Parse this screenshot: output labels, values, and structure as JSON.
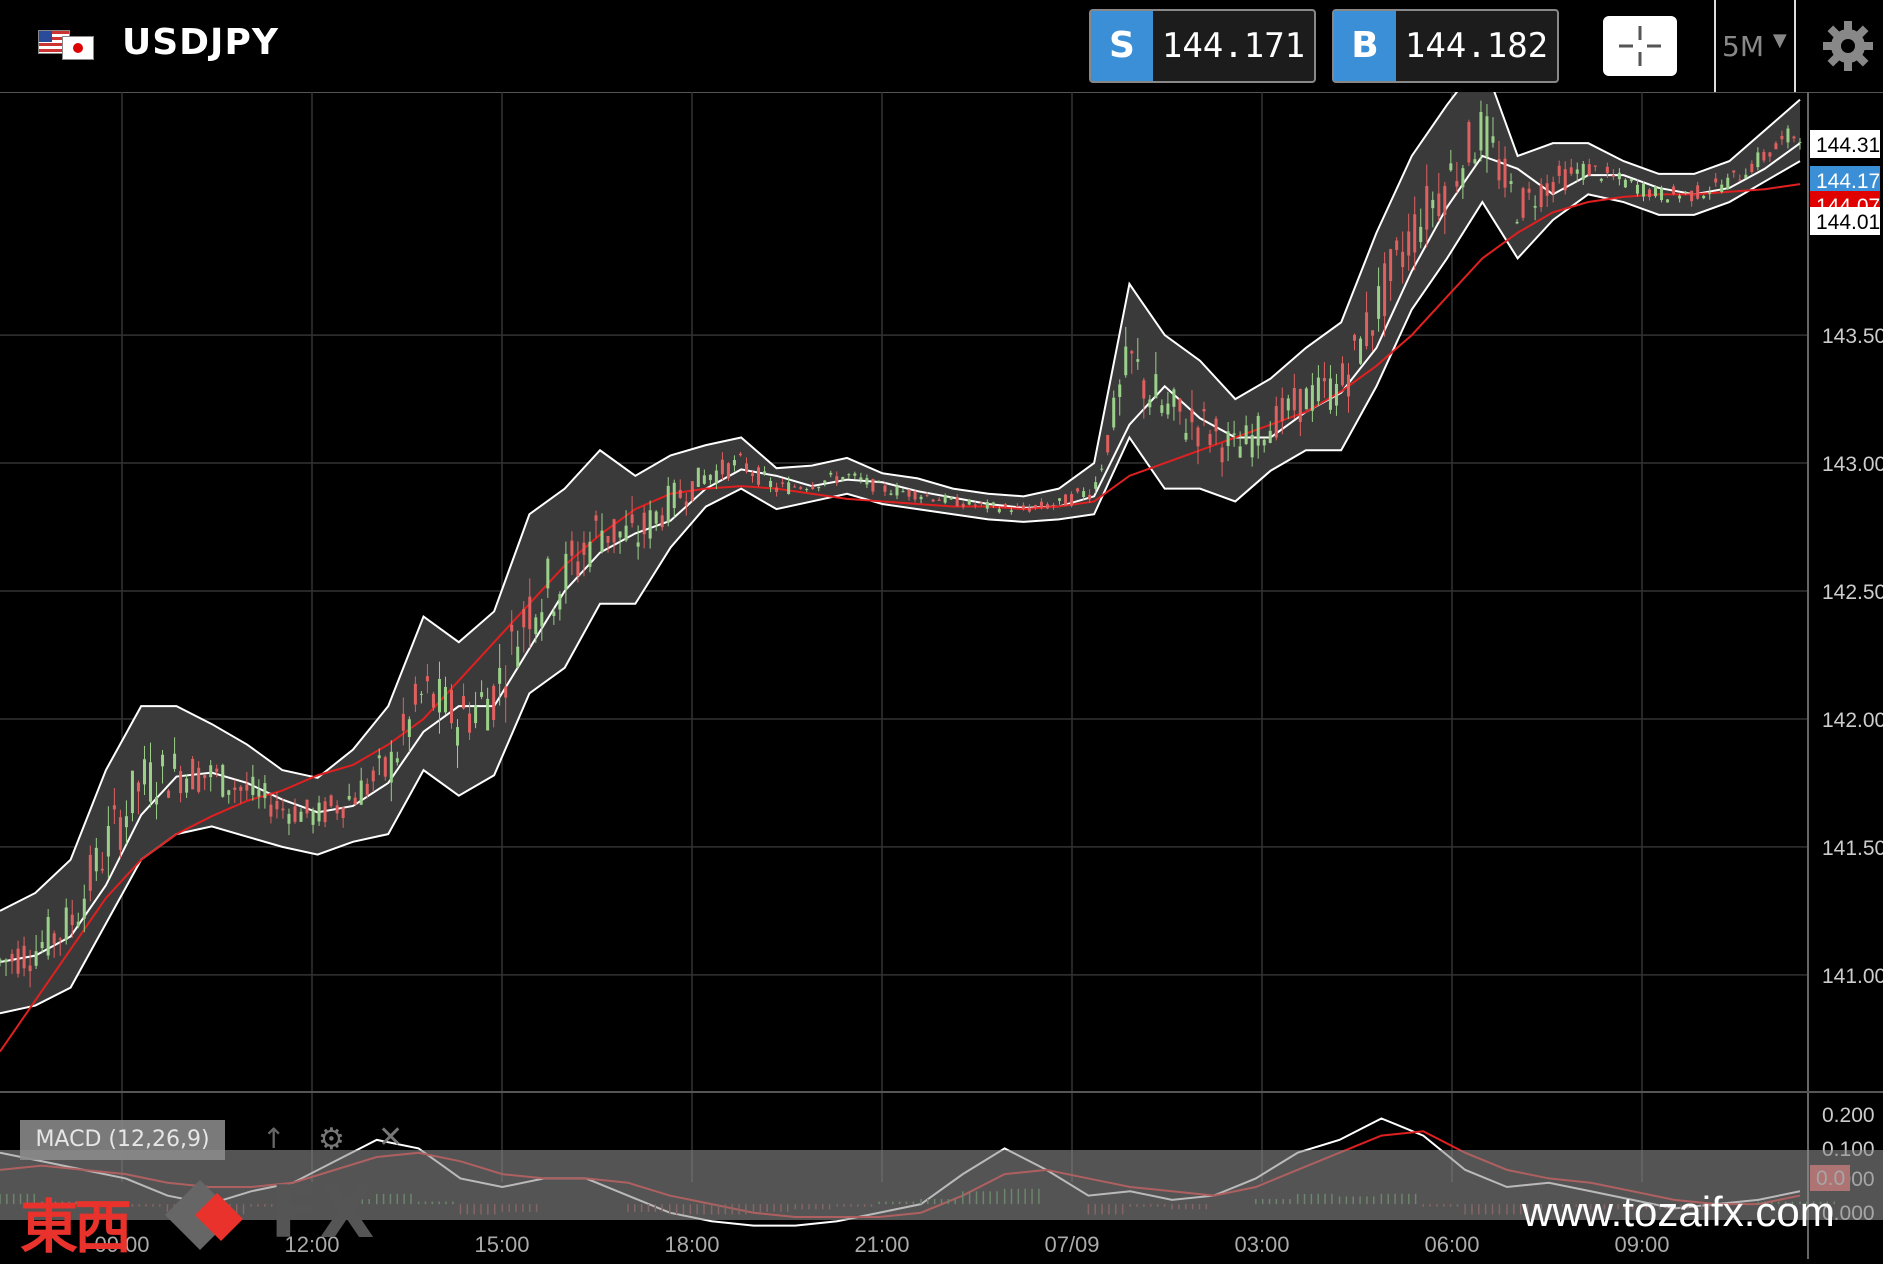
{
  "header": {
    "pair": "USDJPY",
    "sell": {
      "tag": "S",
      "price": "144.171"
    },
    "buy": {
      "tag": "B",
      "price": "144.182"
    },
    "timeframe": "5M",
    "crosshair_icon": "crosshair-icon",
    "settings_icon": "gear-icon",
    "flags": [
      "us-flag-icon",
      "jp-flag-icon"
    ]
  },
  "chart_data": {
    "type": "candlestick",
    "indicators": [
      "Bollinger Bands",
      "Moving Average",
      "MACD (12,26,9)"
    ],
    "y_ticks": [
      "141.00",
      "141.50",
      "142.00",
      "142.50",
      "143.00",
      "143.50"
    ],
    "price_tags": [
      {
        "label": "144.31",
        "color": "#ffffff",
        "text_color": "#000000"
      },
      {
        "label": "144.17",
        "color": "#3a8fd6",
        "text_color": "#ffffff"
      },
      {
        "label": "144.07",
        "color": "#e00000",
        "text_color": "#ffffff"
      },
      {
        "label": "144.01",
        "color": "#ffffff",
        "text_color": "#000000"
      }
    ],
    "x_ticks": [
      "09:00",
      "12:00",
      "15:00",
      "18:00",
      "21:00",
      "07/09",
      "03:00",
      "06:00",
      "09:00"
    ],
    "ylim": [
      140.55,
      144.45
    ],
    "close_series": [
      141.05,
      141.1,
      141.2,
      141.5,
      141.75,
      141.8,
      141.78,
      141.72,
      141.65,
      141.62,
      141.7,
      141.8,
      142.1,
      142.0,
      142.1,
      142.45,
      142.55,
      142.75,
      142.7,
      142.85,
      142.95,
      143.0,
      142.9,
      142.92,
      142.95,
      142.9,
      142.88,
      142.85,
      142.83,
      142.82,
      142.84,
      142.9,
      143.4,
      143.2,
      143.15,
      143.05,
      143.15,
      143.25,
      143.3,
      143.6,
      143.9,
      144.1,
      144.3,
      144.0,
      144.1,
      144.15,
      144.1,
      144.05,
      144.05,
      144.1,
      144.2,
      144.3
    ],
    "ma_series": [
      140.7,
      140.9,
      141.1,
      141.3,
      141.45,
      141.55,
      141.62,
      141.68,
      141.72,
      141.78,
      141.82,
      141.9,
      142.0,
      142.15,
      142.3,
      142.45,
      142.6,
      142.72,
      142.82,
      142.88,
      142.9,
      142.91,
      142.9,
      142.88,
      142.86,
      142.85,
      142.84,
      142.83,
      142.83,
      142.82,
      142.83,
      142.85,
      142.95,
      143.0,
      143.05,
      143.1,
      143.15,
      143.2,
      143.28,
      143.38,
      143.5,
      143.65,
      143.8,
      143.9,
      143.98,
      144.02,
      144.04,
      144.05,
      144.05,
      144.06,
      144.07,
      144.09
    ],
    "bb_width": [
      0.2,
      0.22,
      0.25,
      0.3,
      0.3,
      0.25,
      0.2,
      0.18,
      0.15,
      0.15,
      0.18,
      0.25,
      0.3,
      0.3,
      0.32,
      0.35,
      0.35,
      0.3,
      0.25,
      0.18,
      0.12,
      0.1,
      0.08,
      0.07,
      0.07,
      0.06,
      0.06,
      0.05,
      0.05,
      0.05,
      0.06,
      0.1,
      0.3,
      0.3,
      0.25,
      0.2,
      0.18,
      0.2,
      0.25,
      0.3,
      0.3,
      0.3,
      0.28,
      0.2,
      0.15,
      0.1,
      0.08,
      0.08,
      0.08,
      0.08,
      0.1,
      0.12
    ],
    "macd_panel": {
      "label": "MACD (12,26,9)",
      "y_ticks": [
        "0.200",
        "0.100",
        "0.000",
        "0.000"
      ],
      "current_tag": "0.0",
      "macd_series": [
        0.12,
        0.1,
        0.08,
        0.06,
        0.02,
        0.0,
        0.03,
        0.05,
        0.1,
        0.15,
        0.13,
        0.06,
        0.04,
        0.06,
        0.06,
        0.02,
        -0.02,
        -0.04,
        -0.05,
        -0.05,
        -0.04,
        -0.02,
        0.0,
        0.07,
        0.13,
        0.08,
        0.02,
        0.03,
        0.01,
        0.02,
        0.06,
        0.12,
        0.15,
        0.2,
        0.16,
        0.08,
        0.04,
        0.05,
        0.03,
        0.01,
        -0.01,
        0.0,
        0.01,
        0.03
      ],
      "signal_series": [
        0.08,
        0.09,
        0.08,
        0.07,
        0.05,
        0.04,
        0.04,
        0.05,
        0.08,
        0.11,
        0.12,
        0.1,
        0.07,
        0.06,
        0.06,
        0.05,
        0.02,
        0.0,
        -0.02,
        -0.03,
        -0.03,
        -0.03,
        -0.02,
        0.02,
        0.07,
        0.08,
        0.06,
        0.04,
        0.03,
        0.02,
        0.04,
        0.08,
        0.12,
        0.16,
        0.17,
        0.12,
        0.08,
        0.06,
        0.05,
        0.03,
        0.01,
        0.0,
        0.0,
        0.02
      ]
    },
    "colors": {
      "bullish": "#9ad08a",
      "bearish": "#e06060",
      "band": "#ffffff",
      "band_fill": "#3a3a3a",
      "ma": "#e02020",
      "grid": "#333333"
    }
  },
  "macd_toolbar": {
    "label": "MACD (12,26,9)",
    "up_icon": "↑",
    "gear_icon": "⚙",
    "close_icon": "✕"
  },
  "watermark": {
    "kanji": "東西",
    "fx": "FX",
    "url": "www.tozaifx.com"
  }
}
